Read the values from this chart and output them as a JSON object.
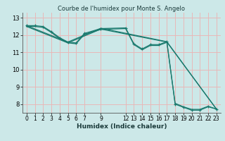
{
  "title": "Courbe de l'humidex pour Monte S. Angelo",
  "xlabel": "Humidex (Indice chaleur)",
  "bg_color": "#cce8e8",
  "grid_color": "#e8b8b8",
  "line_color": "#1a7a6e",
  "xlim": [
    -0.5,
    23.5
  ],
  "ylim": [
    7.5,
    13.3
  ],
  "yticks": [
    8,
    9,
    10,
    11,
    12,
    13
  ],
  "xtick_positions": [
    0,
    1,
    2,
    3,
    4,
    5,
    6,
    7,
    9,
    12,
    13,
    14,
    15,
    16,
    17,
    18,
    19,
    20,
    21,
    22,
    23
  ],
  "xtick_labels": [
    "0",
    "1",
    "2",
    "3",
    "4",
    "5",
    "6",
    "7",
    "9",
    "12",
    "13",
    "14",
    "15",
    "16",
    "17",
    "18",
    "19",
    "20",
    "21",
    "22",
    "23"
  ],
  "series": [
    {
      "x": [
        0,
        1,
        2,
        3,
        4,
        5,
        6,
        7,
        9,
        12,
        13,
        14,
        15,
        16,
        17,
        18,
        19,
        20,
        21,
        22,
        23
      ],
      "y": [
        12.55,
        12.55,
        12.5,
        12.2,
        11.85,
        11.6,
        11.55,
        12.1,
        12.38,
        12.42,
        11.5,
        11.2,
        11.45,
        11.45,
        11.62,
        8.0,
        7.82,
        7.65,
        7.65,
        7.85,
        7.72
      ],
      "marker": true
    },
    {
      "x": [
        0,
        1,
        2,
        3,
        4,
        5,
        6,
        7,
        9,
        12,
        13,
        14,
        15,
        16,
        17,
        18,
        19,
        20,
        21,
        22,
        23
      ],
      "y": [
        12.5,
        12.5,
        12.45,
        12.15,
        11.8,
        11.55,
        11.5,
        12.05,
        12.33,
        12.38,
        11.45,
        11.15,
        11.4,
        11.4,
        11.58,
        8.05,
        7.85,
        7.7,
        7.7,
        7.88,
        7.72
      ],
      "marker": false
    },
    {
      "x": [
        0,
        5,
        9,
        17,
        23
      ],
      "y": [
        12.5,
        11.55,
        12.35,
        11.6,
        7.72
      ],
      "marker": false
    },
    {
      "x": [
        0,
        5,
        9,
        17,
        23
      ],
      "y": [
        12.55,
        11.6,
        12.4,
        11.62,
        7.72
      ],
      "marker": false
    }
  ]
}
